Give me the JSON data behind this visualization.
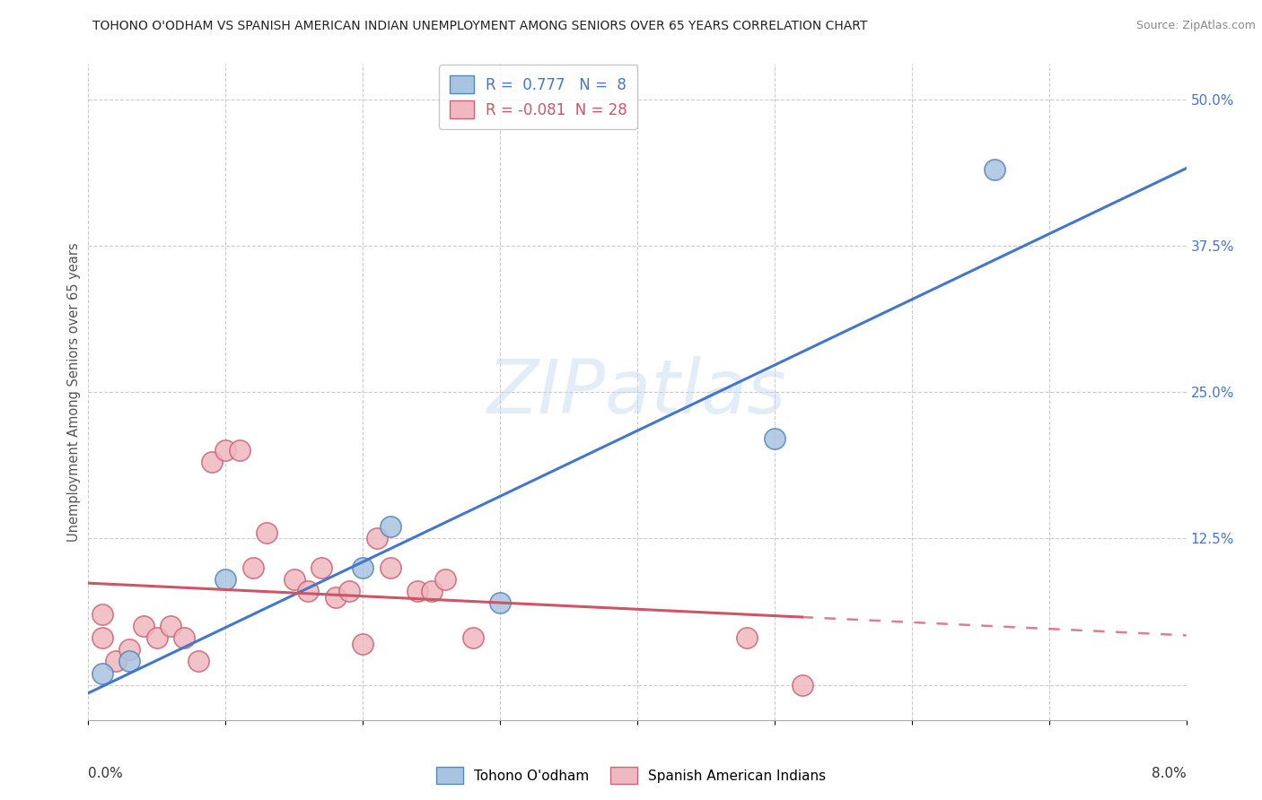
{
  "title": "TOHONO O'ODHAM VS SPANISH AMERICAN INDIAN UNEMPLOYMENT AMONG SENIORS OVER 65 YEARS CORRELATION CHART",
  "source": "Source: ZipAtlas.com",
  "ylabel": "Unemployment Among Seniors over 65 years",
  "ytick_labels": [
    "",
    "12.5%",
    "25.0%",
    "37.5%",
    "50.0%"
  ],
  "ytick_values": [
    0.0,
    0.125,
    0.25,
    0.375,
    0.5
  ],
  "xlim": [
    0,
    0.08
  ],
  "ylim": [
    -0.03,
    0.53
  ],
  "blue_R": 0.777,
  "blue_N": 8,
  "pink_R": -0.081,
  "pink_N": 28,
  "blue_x": [
    0.001,
    0.003,
    0.01,
    0.02,
    0.022,
    0.03,
    0.05,
    0.066
  ],
  "blue_y": [
    0.01,
    0.02,
    0.09,
    0.1,
    0.135,
    0.07,
    0.21,
    0.44
  ],
  "pink_x": [
    0.001,
    0.001,
    0.002,
    0.003,
    0.004,
    0.005,
    0.006,
    0.007,
    0.008,
    0.009,
    0.01,
    0.011,
    0.012,
    0.013,
    0.015,
    0.016,
    0.017,
    0.018,
    0.019,
    0.02,
    0.021,
    0.022,
    0.024,
    0.025,
    0.026,
    0.028,
    0.048,
    0.052
  ],
  "pink_y": [
    0.04,
    0.06,
    0.02,
    0.03,
    0.05,
    0.04,
    0.05,
    0.04,
    0.02,
    0.19,
    0.2,
    0.2,
    0.1,
    0.13,
    0.09,
    0.08,
    0.1,
    0.075,
    0.08,
    0.035,
    0.125,
    0.1,
    0.08,
    0.08,
    0.09,
    0.04,
    0.04,
    0.0
  ],
  "blue_color": "#a8c4e0",
  "blue_edge": "#5588bb",
  "pink_color": "#f0b8c0",
  "pink_edge": "#cc6677",
  "blue_line_color": "#4477cc",
  "pink_line_color": "#cc5566",
  "grid_color": "#cccccc",
  "background_color": "#ffffff",
  "title_color": "#222222",
  "axis_label_color": "#555555",
  "source_color": "#888888",
  "right_tick_color": "#4477cc",
  "watermark_text": "ZIPatlas",
  "watermark_color": "#c0d8ee",
  "watermark_alpha": 0.45
}
